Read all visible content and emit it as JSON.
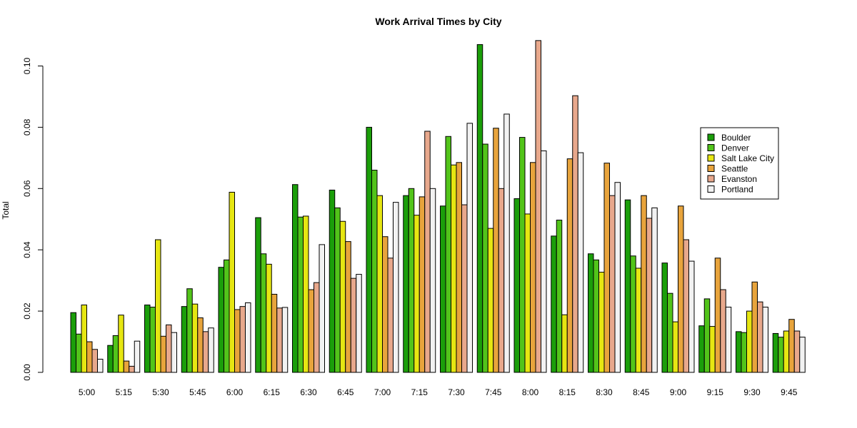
{
  "chart_data": {
    "type": "bar",
    "title": "Work Arrival Times by City",
    "xlabel": "",
    "ylabel": "Total",
    "ylim": [
      0,
      0.11
    ],
    "yticks": [
      "0.00",
      "0.02",
      "0.04",
      "0.06",
      "0.08",
      "0.10"
    ],
    "categories": [
      "5:00",
      "5:15",
      "5:30",
      "5:45",
      "6:00",
      "6:15",
      "6:30",
      "6:45",
      "7:00",
      "7:15",
      "7:30",
      "7:45",
      "8:00",
      "8:15",
      "8:30",
      "8:45",
      "9:00",
      "9:15",
      "9:30",
      "9:45"
    ],
    "legend_position": "right",
    "grid": false,
    "series": [
      {
        "name": "Boulder",
        "color": "#1b9e0a",
        "values": [
          0.0195,
          0.0088,
          0.022,
          0.0215,
          0.0343,
          0.0505,
          0.0613,
          0.0595,
          0.08,
          0.0577,
          0.0543,
          0.107,
          0.0567,
          0.0445,
          0.0387,
          0.0563,
          0.0357,
          0.0152,
          0.0133,
          0.0127
        ]
      },
      {
        "name": "Denver",
        "color": "#52c41a",
        "values": [
          0.0125,
          0.012,
          0.0213,
          0.0273,
          0.0367,
          0.0387,
          0.0507,
          0.0537,
          0.066,
          0.06,
          0.077,
          0.0745,
          0.0767,
          0.0497,
          0.0367,
          0.038,
          0.0258,
          0.024,
          0.013,
          0.0115
        ]
      },
      {
        "name": "Salt Lake City",
        "color": "#e6e612",
        "values": [
          0.022,
          0.0187,
          0.0433,
          0.0223,
          0.0588,
          0.0353,
          0.051,
          0.0493,
          0.0577,
          0.0513,
          0.0677,
          0.047,
          0.0517,
          0.0188,
          0.0327,
          0.034,
          0.0165,
          0.015,
          0.02,
          0.0135
        ]
      },
      {
        "name": "Seattle",
        "color": "#e8a43c",
        "values": [
          0.01,
          0.0037,
          0.0118,
          0.0178,
          0.0205,
          0.0255,
          0.027,
          0.0427,
          0.0443,
          0.0573,
          0.0685,
          0.0797,
          0.0685,
          0.0697,
          0.0683,
          0.0577,
          0.0543,
          0.0373,
          0.0295,
          0.0173
        ]
      },
      {
        "name": "Evanston",
        "color": "#e8a88c",
        "values": [
          0.0075,
          0.002,
          0.0155,
          0.0133,
          0.0215,
          0.021,
          0.0293,
          0.0307,
          0.0373,
          0.0787,
          0.0547,
          0.06,
          0.1083,
          0.0903,
          0.0577,
          0.0503,
          0.0433,
          0.027,
          0.023,
          0.0135
        ]
      },
      {
        "name": "Portland",
        "color": "#f2f2f2",
        "values": [
          0.0043,
          0.0102,
          0.013,
          0.0145,
          0.0227,
          0.0212,
          0.0417,
          0.032,
          0.0555,
          0.06,
          0.0813,
          0.0843,
          0.0723,
          0.0717,
          0.062,
          0.0537,
          0.0363,
          0.0213,
          0.0213,
          0.0115
        ]
      }
    ]
  }
}
